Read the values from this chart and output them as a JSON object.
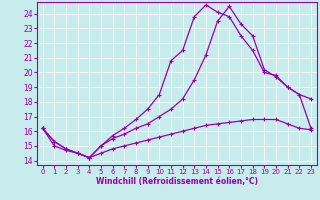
{
  "xlabel": "Windchill (Refroidissement éolien,°C)",
  "bg_color": "#c8ecec",
  "line_color": "#9900aa",
  "grid_color": "#ffffff",
  "xlim": [
    -0.5,
    23.5
  ],
  "ylim": [
    13.7,
    24.8
  ],
  "yticks": [
    14,
    15,
    16,
    17,
    18,
    19,
    20,
    21,
    22,
    23,
    24
  ],
  "xticks": [
    0,
    1,
    2,
    3,
    4,
    5,
    6,
    7,
    8,
    9,
    10,
    11,
    12,
    13,
    14,
    15,
    16,
    17,
    18,
    19,
    20,
    21,
    22,
    23
  ],
  "line1_x": [
    0,
    1,
    2,
    3,
    4,
    5,
    6,
    7,
    8,
    9,
    10,
    11,
    12,
    13,
    14,
    15,
    16,
    17,
    18,
    19,
    20,
    21,
    22,
    23
  ],
  "line1_y": [
    16.2,
    15.3,
    14.8,
    14.5,
    14.2,
    15.0,
    15.7,
    16.2,
    16.8,
    17.5,
    18.5,
    20.8,
    21.5,
    23.8,
    24.6,
    24.1,
    23.8,
    22.5,
    21.5,
    20.0,
    19.8,
    19.0,
    18.5,
    18.2
  ],
  "line2_x": [
    0,
    1,
    2,
    3,
    4,
    5,
    6,
    7,
    8,
    9,
    10,
    11,
    12,
    13,
    14,
    15,
    16,
    17,
    18,
    19,
    20,
    21,
    22,
    23
  ],
  "line2_y": [
    16.2,
    15.3,
    14.8,
    14.5,
    14.2,
    15.0,
    15.5,
    15.8,
    16.2,
    16.5,
    17.0,
    17.5,
    18.2,
    19.5,
    21.2,
    23.5,
    24.5,
    23.3,
    22.5,
    20.2,
    19.7,
    19.0,
    18.5,
    16.2
  ],
  "line3_x": [
    0,
    1,
    2,
    3,
    4,
    5,
    6,
    7,
    8,
    9,
    10,
    11,
    12,
    13,
    14,
    15,
    16,
    17,
    18,
    19,
    20,
    21,
    22,
    23
  ],
  "line3_y": [
    16.2,
    15.0,
    14.7,
    14.5,
    14.2,
    14.5,
    14.8,
    15.0,
    15.2,
    15.4,
    15.6,
    15.8,
    16.0,
    16.2,
    16.4,
    16.5,
    16.6,
    16.7,
    16.8,
    16.8,
    16.8,
    16.5,
    16.2,
    16.1
  ]
}
